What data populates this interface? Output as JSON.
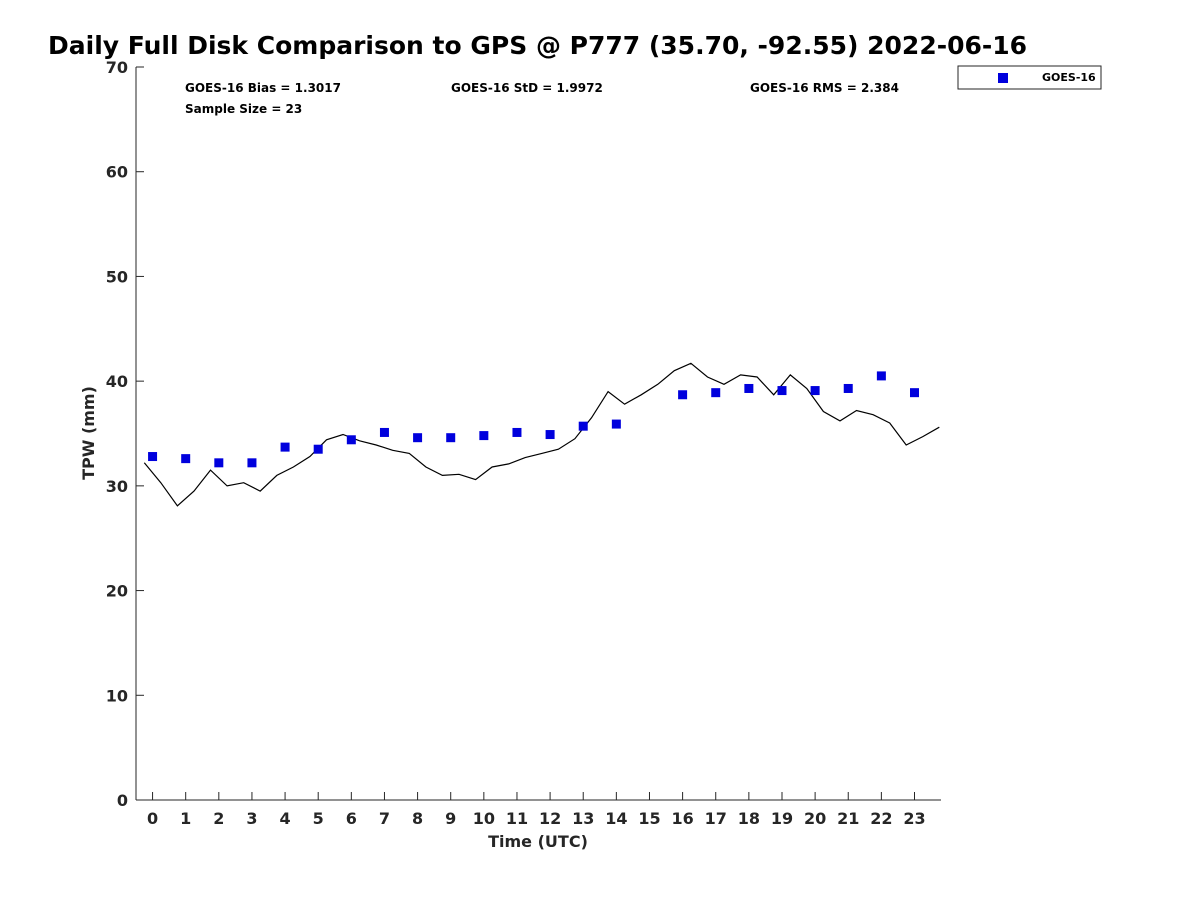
{
  "colors": {
    "marker": "#0000dd",
    "line": "#000000",
    "axis": "#262626",
    "background": "#ffffff"
  },
  "chart_data": {
    "type": "scatter",
    "title": "Daily Full Disk Comparison to GPS @ P777 (35.70, -92.55) 2022-06-16",
    "xlabel": "Time (UTC)",
    "ylabel": "TPW (mm)",
    "xlim": [
      -0.5,
      23.8
    ],
    "ylim": [
      0,
      70
    ],
    "xticks": [
      0,
      1,
      2,
      3,
      4,
      5,
      6,
      7,
      8,
      9,
      10,
      11,
      12,
      13,
      14,
      15,
      16,
      17,
      18,
      19,
      20,
      21,
      22,
      23
    ],
    "yticks": [
      0,
      10,
      20,
      30,
      40,
      50,
      60,
      70
    ],
    "grid": false,
    "legend_position": "top-right-outside",
    "stats": {
      "bias": "GOES-16 Bias = 1.3017",
      "std": "GOES-16 StD = 1.9972",
      "rms": "GOES-16 RMS = 2.384",
      "sample_size": "Sample Size = 23"
    },
    "series": [
      {
        "name": "GOES-16",
        "style": "square-marker",
        "x": [
          0,
          1,
          2,
          3,
          4,
          5,
          6,
          7,
          8,
          9,
          10,
          11,
          12,
          13,
          14,
          16,
          17,
          18,
          19,
          20,
          21,
          22,
          23
        ],
        "y": [
          32.8,
          32.6,
          32.2,
          32.2,
          33.7,
          33.5,
          34.4,
          35.1,
          34.6,
          34.6,
          34.8,
          35.1,
          34.9,
          35.7,
          35.9,
          38.7,
          38.9,
          39.3,
          39.1,
          39.1,
          39.3,
          40.5,
          38.9
        ]
      },
      {
        "style": "line",
        "x": [
          -0.25,
          0.25,
          0.75,
          1.25,
          1.75,
          2.25,
          2.75,
          3.25,
          3.75,
          4.25,
          4.75,
          5.25,
          5.75,
          6.25,
          6.75,
          7.25,
          7.75,
          8.25,
          8.75,
          9.25,
          9.75,
          10.25,
          10.75,
          11.25,
          11.75,
          12.25,
          12.75,
          13.25,
          13.75,
          14.25,
          14.75,
          15.25,
          15.75,
          16.25,
          16.75,
          17.25,
          17.75,
          18.25,
          18.75,
          19.25,
          19.75,
          20.25,
          20.75,
          21.25,
          21.75,
          22.25,
          22.75,
          23.25,
          23.75
        ],
        "y": [
          32.2,
          30.3,
          28.1,
          29.5,
          31.5,
          30.0,
          30.3,
          29.5,
          31.0,
          31.8,
          32.8,
          34.4,
          34.9,
          34.3,
          33.9,
          33.4,
          33.1,
          31.8,
          31.0,
          31.1,
          30.6,
          31.8,
          32.1,
          32.7,
          33.1,
          33.5,
          34.5,
          36.5,
          39.0,
          37.8,
          38.7,
          39.7,
          41.0,
          41.7,
          40.4,
          39.7,
          40.6,
          40.4,
          38.7,
          40.6,
          39.3,
          37.1,
          36.2,
          37.2,
          36.8,
          36.0,
          33.9,
          34.7,
          35.6
        ]
      }
    ]
  }
}
